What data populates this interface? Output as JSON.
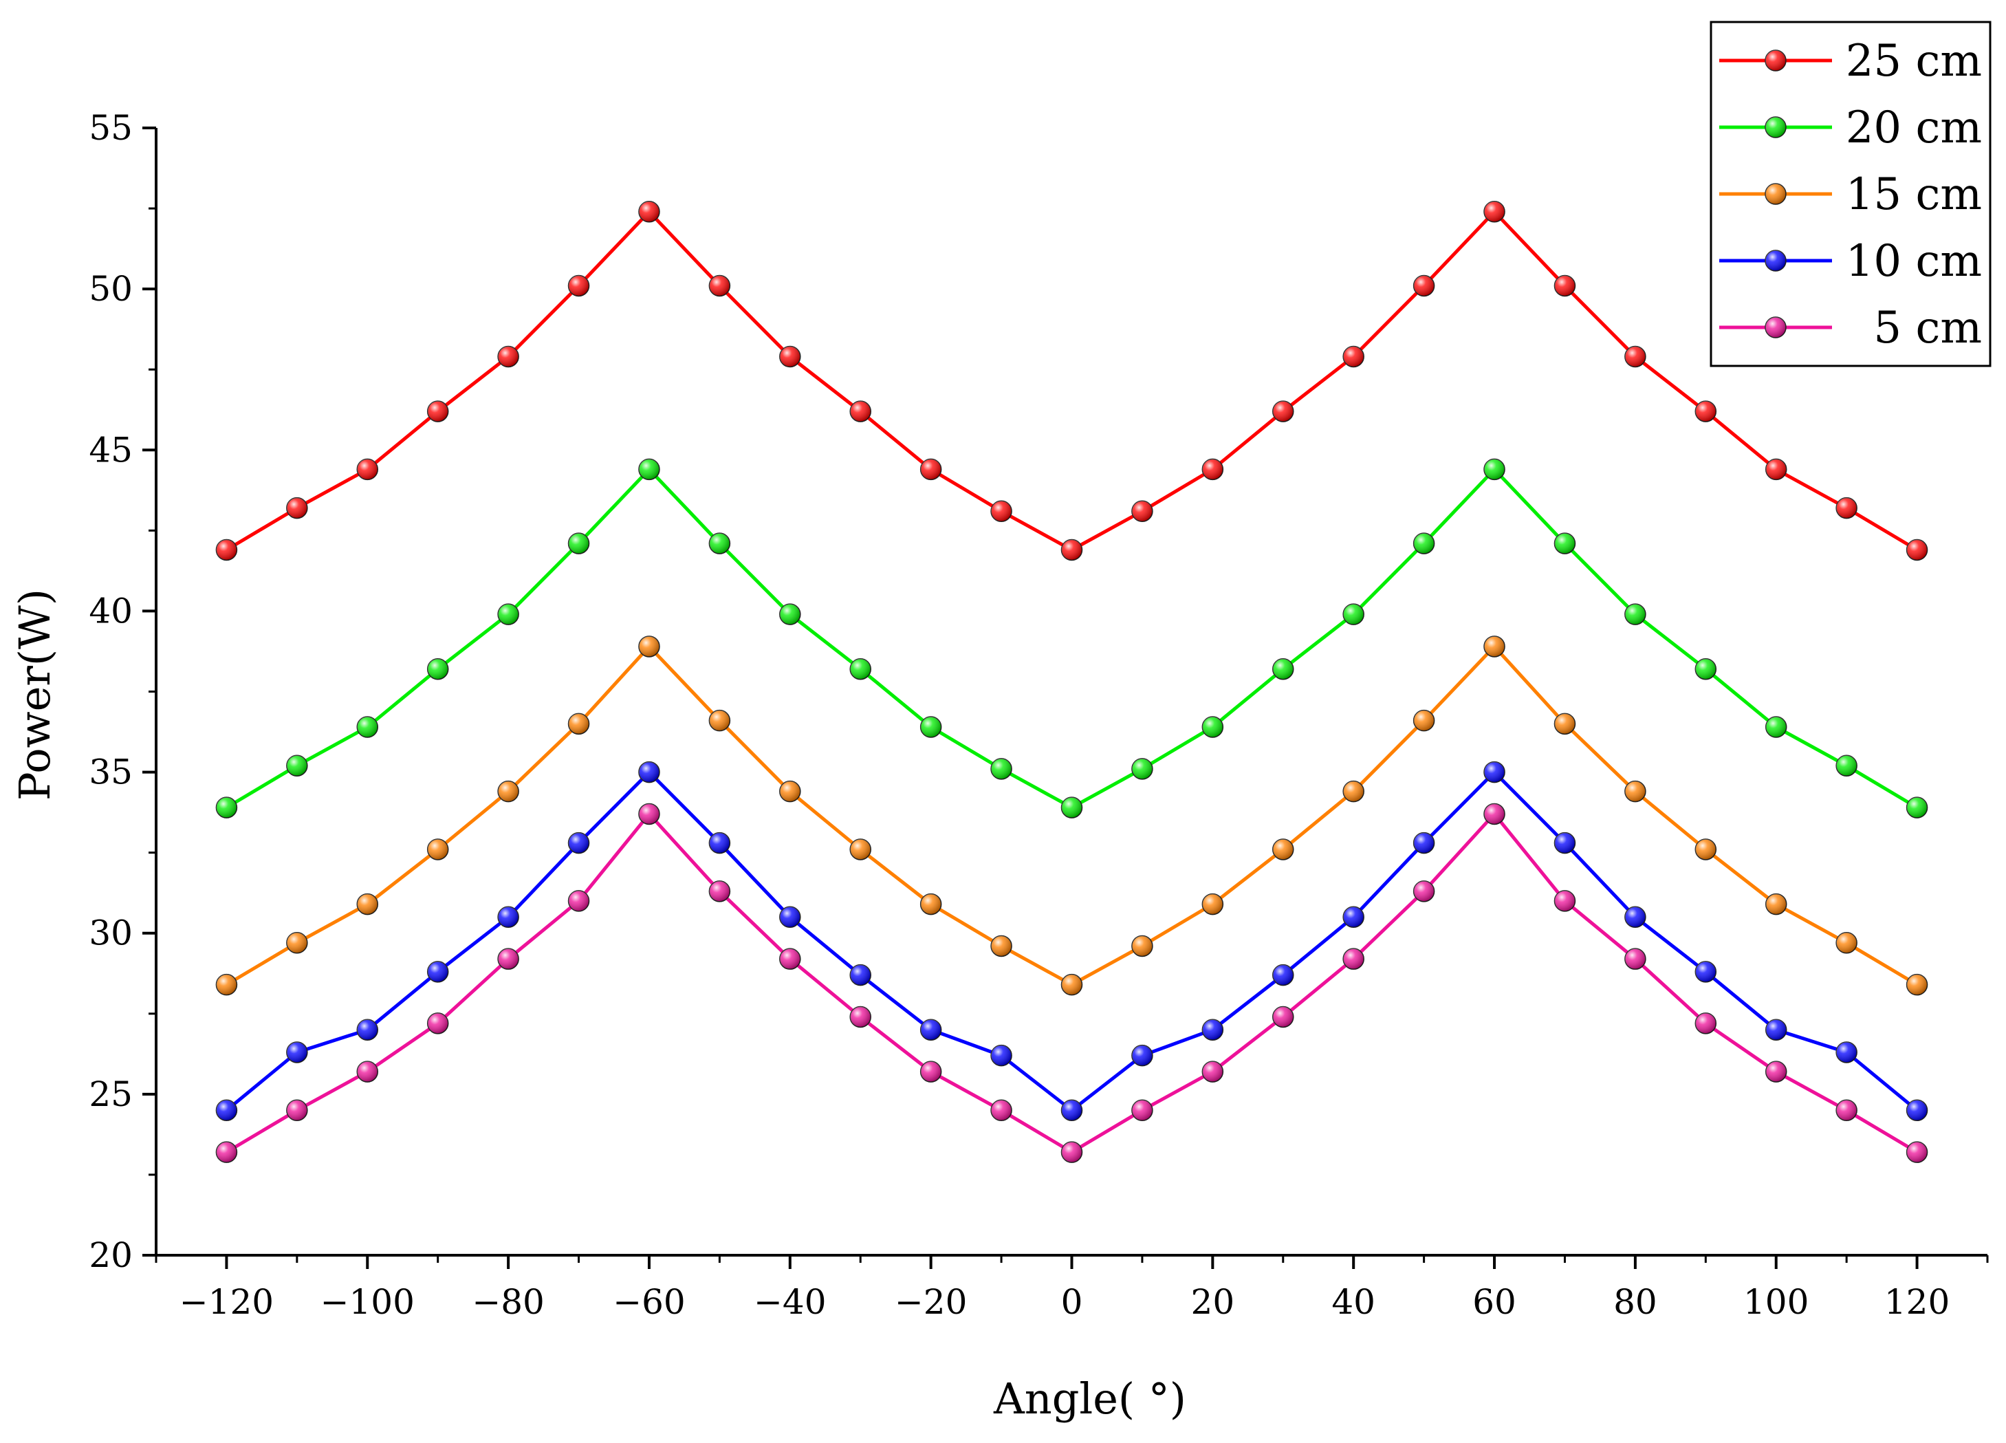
{
  "chart_data": {
    "type": "line",
    "title": "",
    "xlabel": "Angle( °)",
    "ylabel": "Power(W)",
    "xlim": [
      -130,
      130
    ],
    "ylim": [
      20,
      55
    ],
    "xticks": [
      -120,
      -100,
      -80,
      -60,
      -40,
      -20,
      0,
      20,
      40,
      60,
      80,
      100,
      120
    ],
    "xtick_labels": [
      "−120",
      "−100",
      "−80",
      "−60",
      "−40",
      "−20",
      "0",
      "20",
      "40",
      "60",
      "80",
      "100",
      "120"
    ],
    "yticks": [
      20,
      25,
      30,
      35,
      40,
      45,
      50,
      55
    ],
    "ytick_labels": [
      "20",
      "25",
      "30",
      "35",
      "40",
      "45",
      "50",
      "55"
    ],
    "legend_position": "top-right",
    "x": [
      -120,
      -110,
      -100,
      -90,
      -80,
      -70,
      -60,
      -50,
      -40,
      -30,
      -20,
      -10,
      0,
      10,
      20,
      30,
      40,
      50,
      60,
      70,
      80,
      90,
      100,
      110,
      120
    ],
    "series": [
      {
        "name": "25 cm",
        "color": "#ff0000",
        "values": [
          41.9,
          43.2,
          44.4,
          46.2,
          47.9,
          50.1,
          52.4,
          50.1,
          47.9,
          46.2,
          44.4,
          43.1,
          41.9,
          43.1,
          44.4,
          46.2,
          47.9,
          50.1,
          52.4,
          50.1,
          47.9,
          46.2,
          44.4,
          43.2,
          41.9
        ]
      },
      {
        "name": "20 cm",
        "color": "#00ee00",
        "values": [
          33.9,
          35.2,
          36.4,
          38.2,
          39.9,
          42.1,
          44.4,
          42.1,
          39.9,
          38.2,
          36.4,
          35.1,
          33.9,
          35.1,
          36.4,
          38.2,
          39.9,
          42.1,
          44.4,
          42.1,
          39.9,
          38.2,
          36.4,
          35.2,
          33.9
        ]
      },
      {
        "name": "15 cm",
        "color": "#ff8000",
        "values": [
          28.4,
          29.7,
          30.9,
          32.6,
          34.4,
          36.5,
          38.9,
          36.6,
          34.4,
          32.6,
          30.9,
          29.6,
          28.4,
          29.6,
          30.9,
          32.6,
          34.4,
          36.6,
          38.9,
          36.5,
          34.4,
          32.6,
          30.9,
          29.7,
          28.4
        ]
      },
      {
        "name": "10 cm",
        "color": "#0000ff",
        "values": [
          24.5,
          26.3,
          27.0,
          28.8,
          30.5,
          32.8,
          35.0,
          32.8,
          30.5,
          28.7,
          27.0,
          26.2,
          24.5,
          26.2,
          27.0,
          28.7,
          30.5,
          32.8,
          35.0,
          32.8,
          30.5,
          28.8,
          27.0,
          26.3,
          24.5
        ]
      },
      {
        "name": " 5 cm",
        "color": "#ee1199",
        "values": [
          23.2,
          24.5,
          25.7,
          27.2,
          29.2,
          31.0,
          33.7,
          31.3,
          29.2,
          27.4,
          25.7,
          24.5,
          23.2,
          24.5,
          25.7,
          27.4,
          29.2,
          31.3,
          33.7,
          31.0,
          29.2,
          27.2,
          25.7,
          24.5,
          23.2
        ]
      }
    ]
  }
}
